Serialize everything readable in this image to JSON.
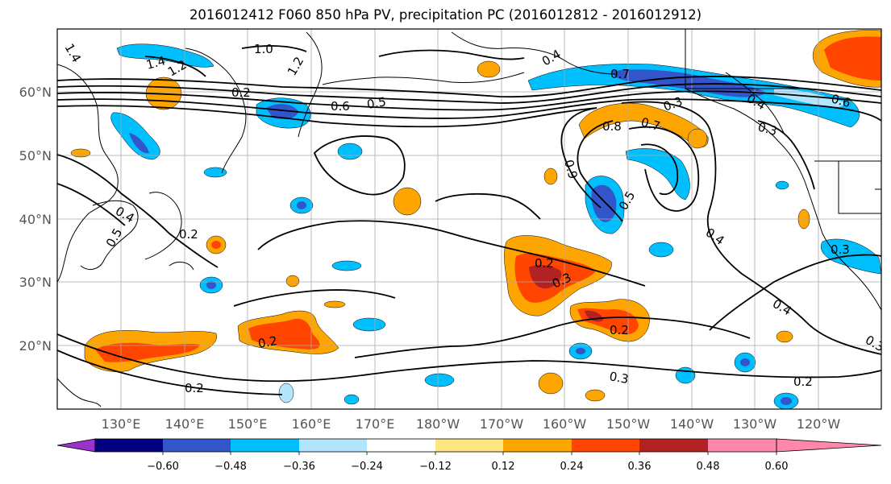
{
  "title": "2016012412 F060 850 hPa PV, precipitation PC (2016012812 - 2016012912)",
  "lat_labels": [
    "60°N",
    "50°N",
    "40°N",
    "30°N",
    "20°N"
  ],
  "lon_labels": [
    "130°E",
    "140°E",
    "150°E",
    "160°E",
    "170°E",
    "180°W",
    "170°W",
    "160°W",
    "150°W",
    "140°W",
    "130°W",
    "120°W"
  ],
  "colorbar": {
    "colors": [
      "#9933cc",
      "#000080",
      "#3355cc",
      "#00bfff",
      "#b3e5fc",
      "#ffffff",
      "#ffe680",
      "#ffa500",
      "#ff4500",
      "#b22222",
      "#ff88aa"
    ],
    "ticks": [
      "−0.60",
      "−0.48",
      "−0.36",
      "−0.24",
      "−0.12",
      "0.12",
      "0.24",
      "0.36",
      "0.48",
      "0.60"
    ]
  },
  "contour_labels": [
    "1.4",
    "1.0",
    "1.4",
    "1.2",
    "1.2",
    "0.6",
    "0.5",
    "0.4",
    "0.5",
    "0.2",
    "0.2",
    "0.2",
    "0.2",
    "0.3",
    "0.2",
    "0.3",
    "0.2",
    "0.7",
    "0.3",
    "0.8",
    "0.7",
    "0.9",
    "0.5",
    "0.4",
    "0.4",
    "0.3",
    "0.4",
    "0.3",
    "0.6",
    "0.3",
    "0.4",
    "0.2"
  ]
}
